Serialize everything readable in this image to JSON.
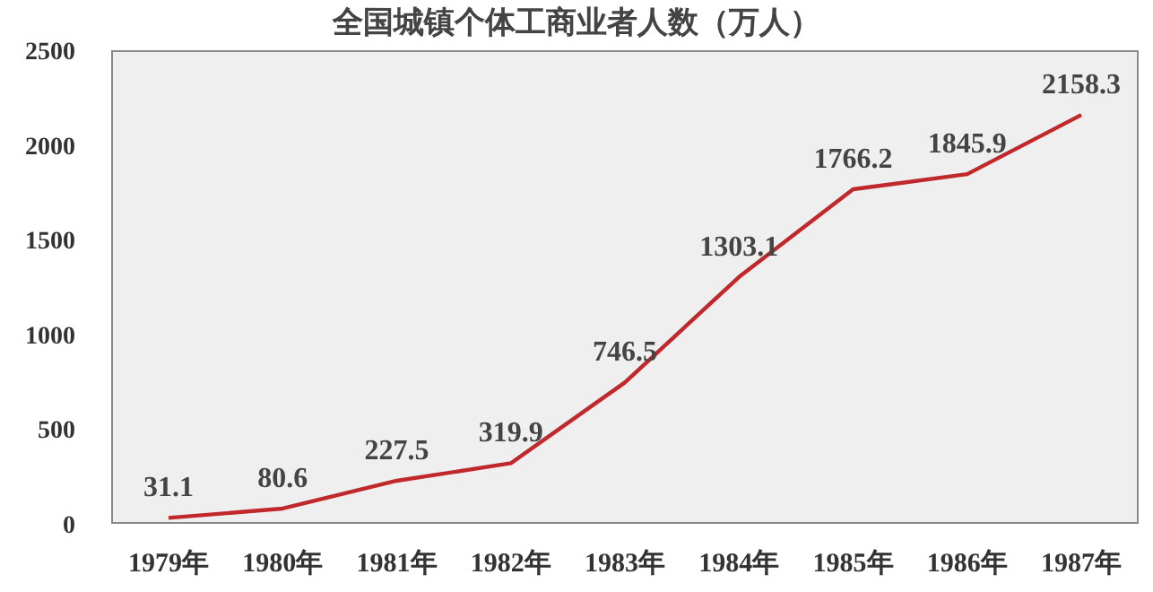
{
  "chart_data": {
    "type": "line",
    "title": "全国城镇个体工商业者人数（万人）",
    "categories": [
      "1979年",
      "1980年",
      "1981年",
      "1982年",
      "1983年",
      "1984年",
      "1985年",
      "1986年",
      "1987年"
    ],
    "values": [
      31.1,
      80.6,
      227.5,
      319.9,
      746.5,
      1303.1,
      1766.2,
      1845.9,
      2158.3
    ],
    "color": "#c0282b",
    "ylim": [
      0,
      2500
    ],
    "yticks": [
      0,
      500,
      1000,
      1500,
      2000,
      2500
    ],
    "grid": false,
    "marker": "none",
    "data_labels": true
  }
}
